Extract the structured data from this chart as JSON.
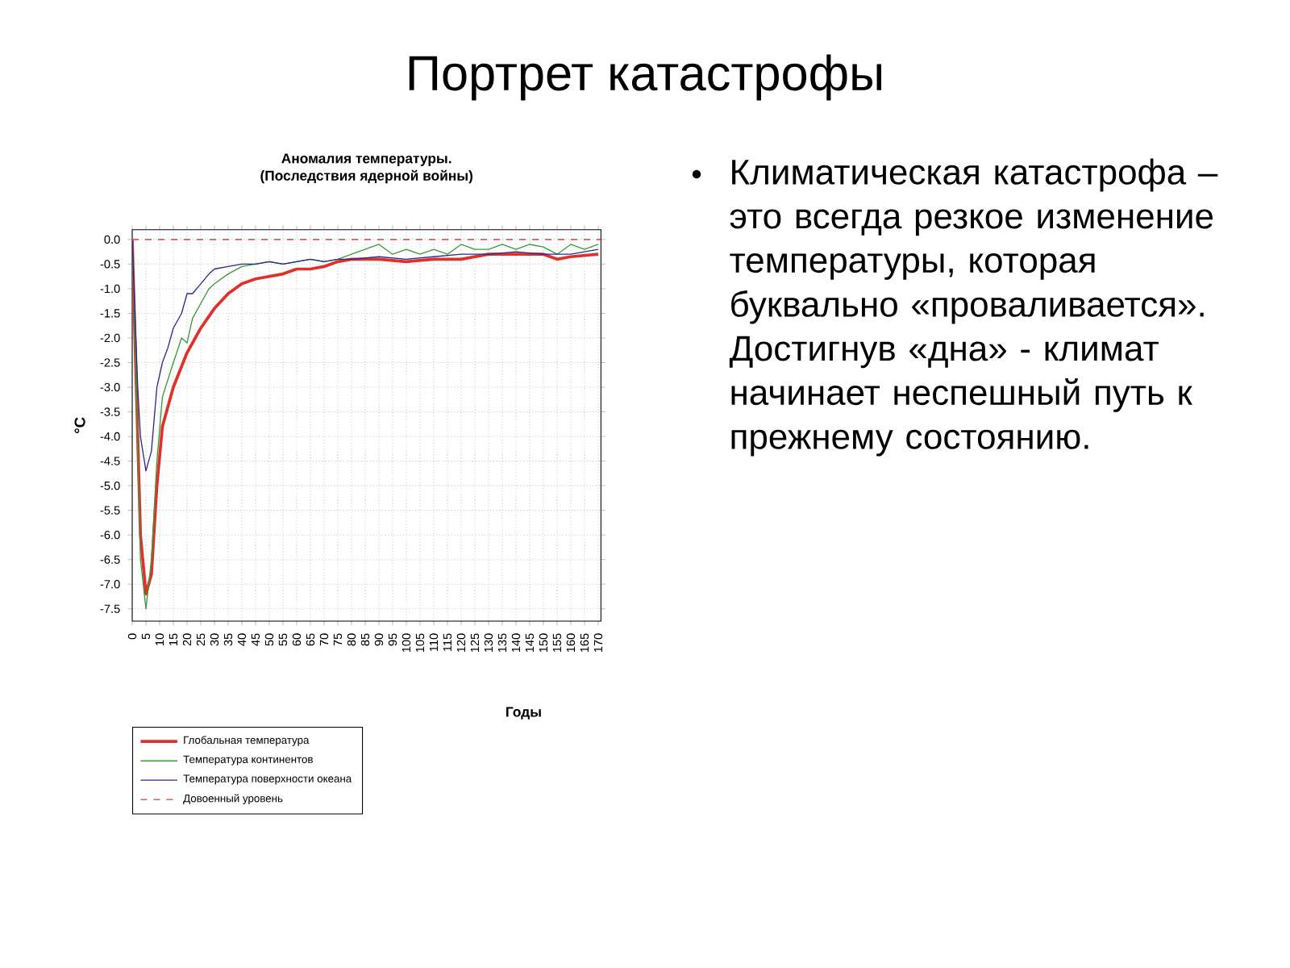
{
  "chart_data": {
    "type": "line",
    "title": "Аномалия температуры.",
    "subtitle": "(Последствия ядерной войны)",
    "xlabel": "Годы",
    "ylabel": "°C",
    "annotations": [
      "Портрет катастрофы",
      "Климатическая катастрофа – это всегда резкое изменение температуры, которая буквально «проваливается». Достигнув «дна» - климат начинает неспешный путь к прежнему состоянию."
    ],
    "xlim": [
      0,
      171
    ],
    "ylim": [
      -7.75,
      0.2
    ],
    "xticks": [
      0,
      5,
      10,
      15,
      20,
      25,
      30,
      35,
      40,
      45,
      50,
      55,
      60,
      65,
      70,
      75,
      80,
      85,
      90,
      95,
      100,
      105,
      110,
      115,
      120,
      125,
      130,
      135,
      140,
      145,
      150,
      155,
      160,
      165,
      170
    ],
    "yticks": [
      {
        "value": 0,
        "label": "0.0"
      },
      {
        "value": -0.5,
        "label": "-0.5"
      },
      {
        "value": -1,
        "label": "-1.0"
      },
      {
        "value": -1.5,
        "label": "-1.5"
      },
      {
        "value": -2,
        "label": "-2.0"
      },
      {
        "value": -2.5,
        "label": "-2.5"
      },
      {
        "value": -3,
        "label": "-3.0"
      },
      {
        "value": -3.5,
        "label": "-3.5"
      },
      {
        "value": -4,
        "label": "-4.0"
      },
      {
        "value": -4.5,
        "label": "-4.5"
      },
      {
        "value": -5,
        "label": "-5.0"
      },
      {
        "value": -5.5,
        "label": "-5.5"
      },
      {
        "value": -6,
        "label": "-6.0"
      },
      {
        "value": -6.5,
        "label": "-6.5"
      },
      {
        "value": -7,
        "label": "-7.0"
      },
      {
        "value": -7.5,
        "label": "-7.5"
      }
    ],
    "grid": true,
    "legend": "bottom",
    "ref_lines": [
      {
        "axis": "y",
        "value": 0,
        "label": "Довоенный уровень",
        "color": "#e05a5a",
        "line_style": "dashed"
      }
    ],
    "series": [
      {
        "name": "Глобальная температура",
        "color": "#e0302a",
        "x": [
          0,
          1,
          3,
          5,
          7,
          9,
          11,
          15,
          20,
          25,
          30,
          35,
          40,
          45,
          50,
          55,
          60,
          65,
          70,
          75,
          80,
          90,
          100,
          110,
          120,
          130,
          140,
          150,
          155,
          160,
          170
        ],
        "values": [
          0,
          -2,
          -6,
          -7.2,
          -6.8,
          -5,
          -3.8,
          -3,
          -2.3,
          -1.8,
          -1.4,
          -1.1,
          -0.9,
          -0.8,
          -0.75,
          -0.7,
          -0.6,
          -0.6,
          -0.55,
          -0.45,
          -0.4,
          -0.4,
          -0.45,
          -0.4,
          -0.4,
          -0.3,
          -0.3,
          -0.3,
          -0.4,
          -0.35,
          -0.3
        ]
      },
      {
        "name": "Температура континентов",
        "color": "#3a9a3a",
        "x": [
          0,
          1,
          3,
          5,
          7,
          9,
          11,
          15,
          18,
          20,
          22,
          25,
          28,
          30,
          35,
          40,
          45,
          50,
          55,
          60,
          65,
          70,
          75,
          80,
          85,
          90,
          95,
          100,
          105,
          110,
          115,
          120,
          125,
          130,
          135,
          140,
          145,
          150,
          155,
          160,
          165,
          170
        ],
        "values": [
          0,
          -2,
          -6.5,
          -7.5,
          -6.5,
          -4.5,
          -3.2,
          -2.5,
          -2,
          -2.1,
          -1.6,
          -1.3,
          -1,
          -0.9,
          -0.7,
          -0.55,
          -0.5,
          -0.45,
          -0.5,
          -0.45,
          -0.4,
          -0.45,
          -0.4,
          -0.3,
          -0.2,
          -0.1,
          -0.3,
          -0.2,
          -0.3,
          -0.2,
          -0.3,
          -0.1,
          -0.2,
          -0.2,
          -0.1,
          -0.2,
          -0.1,
          -0.15,
          -0.3,
          -0.1,
          -0.2,
          -0.1
        ]
      },
      {
        "name": "Температура поверхности океана",
        "color": "#2a2a90",
        "x": [
          0,
          1,
          2,
          3,
          5,
          7,
          9,
          11,
          13,
          15,
          18,
          20,
          22,
          25,
          28,
          30,
          35,
          40,
          45,
          50,
          55,
          60,
          65,
          70,
          75,
          80,
          90,
          100,
          110,
          120,
          130,
          140,
          150,
          160,
          170
        ],
        "values": [
          0,
          -1.5,
          -3,
          -4,
          -4.7,
          -4.3,
          -3,
          -2.5,
          -2.2,
          -1.8,
          -1.5,
          -1.1,
          -1.1,
          -0.9,
          -0.7,
          -0.6,
          -0.55,
          -0.5,
          -0.5,
          -0.45,
          -0.5,
          -0.45,
          -0.4,
          -0.45,
          -0.4,
          -0.4,
          -0.35,
          -0.4,
          -0.35,
          -0.3,
          -0.3,
          -0.25,
          -0.3,
          -0.3,
          -0.2
        ]
      }
    ]
  }
}
